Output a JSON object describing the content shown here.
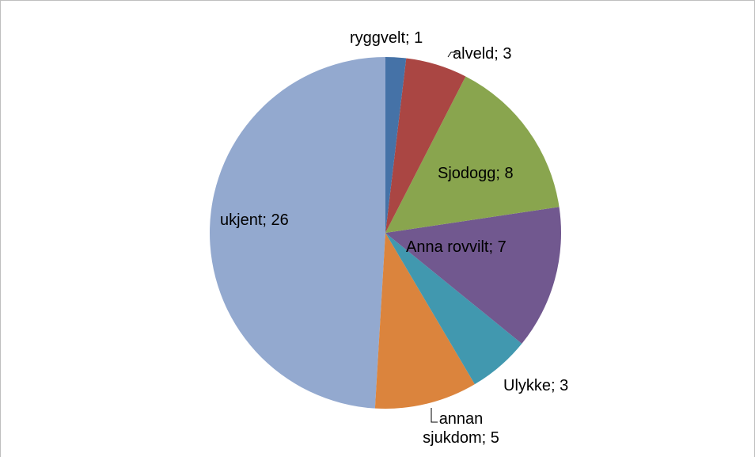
{
  "chart_data": {
    "type": "pie",
    "values": [
      1,
      3,
      8,
      7,
      3,
      5,
      26
    ],
    "value_labels": [
      "ryggvelt; 1",
      "alveld; 3",
      "Sjodogg; 8",
      "Anna rovvilt; 7",
      "Ulykke; 3",
      "annan sjukdom; 5",
      "ukjent; 26"
    ],
    "colors": [
      "#4572a7",
      "#aa4643",
      "#89a54e",
      "#71588f",
      "#4198af",
      "#db843d",
      "#93a9cf"
    ]
  }
}
